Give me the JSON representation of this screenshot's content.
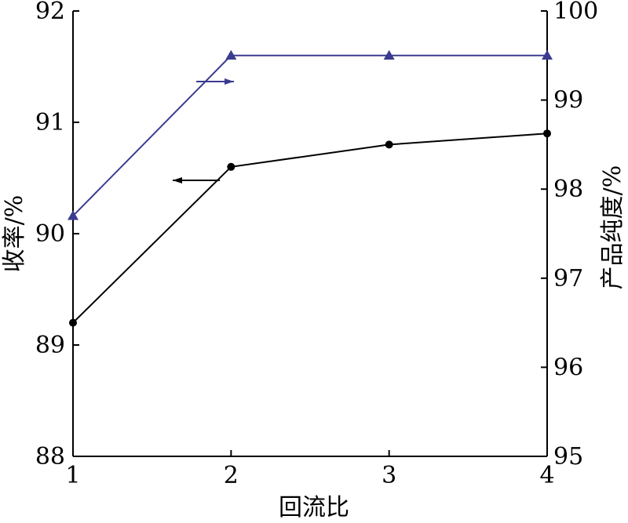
{
  "chart_data": {
    "type": "line",
    "x": [
      1,
      2,
      3,
      4
    ],
    "xlabel": "回流比",
    "xlim": [
      1,
      4
    ],
    "x_ticks": [
      "1",
      "2",
      "3",
      "4"
    ],
    "ylabel_left": "收率/%",
    "ylim_left": [
      88,
      92
    ],
    "y_ticks_left": [
      "88",
      "89",
      "90",
      "91",
      "92"
    ],
    "ylabel_right": "产品纯度/%",
    "ylim_right": [
      95,
      100
    ],
    "y_ticks_right": [
      "95",
      "96",
      "97",
      "98",
      "99",
      "100"
    ],
    "grid": false,
    "series": [
      {
        "axis": "left",
        "marker": "circle",
        "color": "#000000",
        "values": [
          89.2,
          90.6,
          90.8,
          90.9
        ]
      },
      {
        "axis": "right",
        "marker": "triangle",
        "color": "#3b3b8f",
        "values": [
          97.7,
          99.5,
          99.5,
          99.5
        ]
      }
    ],
    "annotations": [
      {
        "direction": "left",
        "points_to_axis": "left",
        "color": "#000000"
      },
      {
        "direction": "right",
        "points_to_axis": "right",
        "color": "#3b3b8f"
      }
    ]
  }
}
